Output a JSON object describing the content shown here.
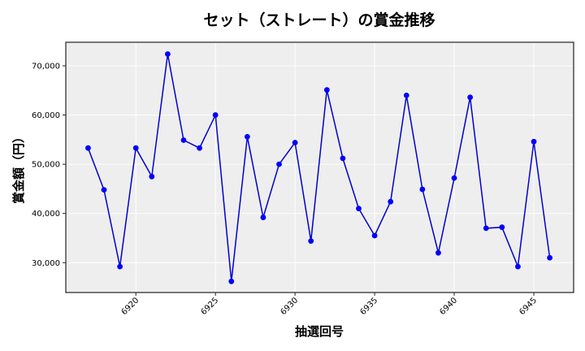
{
  "chart_data": {
    "type": "line",
    "title": "セット（ストレート）の賞金推移",
    "xlabel": "抽選回号",
    "ylabel": "賞金額（円）",
    "x": [
      6917,
      6918,
      6919,
      6920,
      6921,
      6922,
      6923,
      6924,
      6925,
      6926,
      6927,
      6928,
      6929,
      6930,
      6931,
      6932,
      6933,
      6934,
      6935,
      6936,
      6937,
      6938,
      6939,
      6940,
      6941,
      6942,
      6943,
      6944,
      6945,
      6946
    ],
    "series": [
      {
        "name": "セット（ストレート）",
        "values": [
          53300,
          44800,
          29200,
          53300,
          47500,
          72400,
          54900,
          53300,
          60000,
          26200,
          55600,
          39200,
          50000,
          54400,
          34400,
          65100,
          51200,
          41000,
          35500,
          42400,
          64000,
          44900,
          32000,
          47200,
          63600,
          37000,
          37200,
          29200,
          54600,
          31000
        ],
        "line_color": "#0000cd",
        "marker_color": "#0000ff"
      }
    ],
    "xticks": [
      6920,
      6925,
      6930,
      6935,
      6940,
      6945
    ],
    "xtick_labels": [
      "6920",
      "6925",
      "6930",
      "6935",
      "6940",
      "6945"
    ],
    "yticks": [
      30000,
      40000,
      50000,
      60000,
      70000
    ],
    "ytick_labels": [
      "30,000",
      "40,000",
      "50,000",
      "60,000",
      "70,000"
    ],
    "xlim": [
      6915.6,
      6947.5
    ],
    "ylim": [
      23940,
      74790
    ],
    "grid": true,
    "legend": null,
    "background_color": "#eeeeee",
    "grid_color": "#ffffff"
  }
}
